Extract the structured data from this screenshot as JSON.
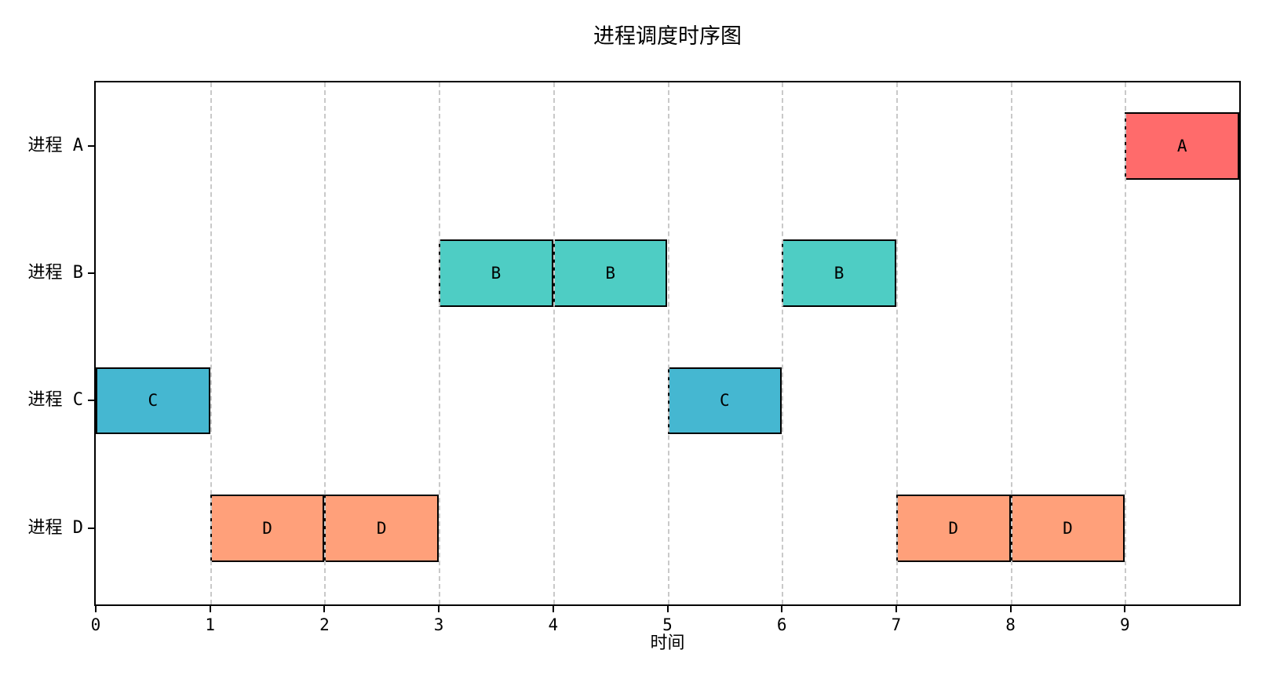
{
  "figure": {
    "background": "#ffffff",
    "spine_color": "#000000"
  },
  "chart_data": {
    "type": "gantt",
    "title": "进程调度时序图",
    "xlabel": "时间",
    "ylabel": "",
    "xlim": [
      0,
      10
    ],
    "ylim": [
      -0.6,
      3.5
    ],
    "x_ticks": [
      0,
      1,
      2,
      3,
      4,
      5,
      6,
      7,
      8,
      9
    ],
    "grid": {
      "axis": "x",
      "linestyle": "dashed",
      "color": "#c9c9c9"
    },
    "bar_edge_color": "#000000",
    "bar_height": 0.53,
    "legend": "none",
    "rows": [
      {
        "label": "进程 A",
        "value": 3,
        "color": "#FF6B6B",
        "segments": [
          {
            "start": 9,
            "end": 10,
            "text": "A"
          }
        ]
      },
      {
        "label": "进程 B",
        "value": 2,
        "color": "#4ECDC4",
        "segments": [
          {
            "start": 3,
            "end": 4,
            "text": "B"
          },
          {
            "start": 4,
            "end": 5,
            "text": "B"
          },
          {
            "start": 6,
            "end": 7,
            "text": "B"
          }
        ]
      },
      {
        "label": "进程 C",
        "value": 1,
        "color": "#45B7D1",
        "segments": [
          {
            "start": 0,
            "end": 1,
            "text": "C"
          },
          {
            "start": 5,
            "end": 6,
            "text": "C"
          }
        ]
      },
      {
        "label": "进程 D",
        "value": 0,
        "color": "#FFA07A",
        "segments": [
          {
            "start": 1,
            "end": 2,
            "text": "D"
          },
          {
            "start": 2,
            "end": 3,
            "text": "D"
          },
          {
            "start": 7,
            "end": 8,
            "text": "D"
          },
          {
            "start": 8,
            "end": 9,
            "text": "D"
          }
        ]
      }
    ]
  }
}
